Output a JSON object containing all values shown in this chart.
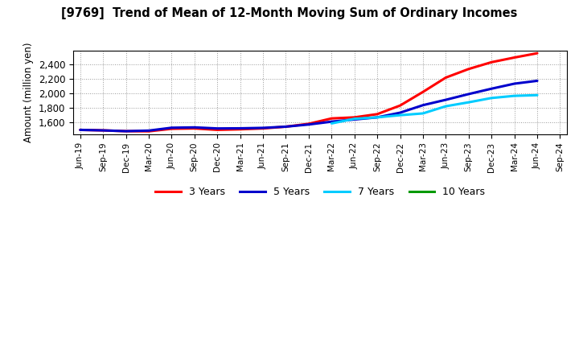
{
  "title": "[9769]  Trend of Mean of 12-Month Moving Sum of Ordinary Incomes",
  "ylabel": "Amount (million yen)",
  "ylim": [
    1430,
    2600
  ],
  "yticks": [
    1600,
    1800,
    2000,
    2200,
    2400
  ],
  "background_color": "#ffffff",
  "grid_color": "#999999",
  "x_labels": [
    "Jun-19",
    "Sep-19",
    "Dec-19",
    "Mar-20",
    "Jun-20",
    "Sep-20",
    "Dec-20",
    "Mar-21",
    "Jun-21",
    "Sep-21",
    "Dec-21",
    "Mar-22",
    "Jun-22",
    "Sep-22",
    "Dec-22",
    "Mar-23",
    "Jun-23",
    "Sep-23",
    "Dec-23",
    "Mar-24",
    "Jun-24",
    "Sep-24"
  ],
  "series": {
    "3 Years": {
      "color": "#ff0000",
      "data_x": [
        0,
        1,
        2,
        3,
        4,
        5,
        6,
        7,
        8,
        9,
        10,
        11,
        12,
        13,
        14,
        15,
        16,
        17,
        18,
        19,
        20
      ],
      "data_y": [
        1490,
        1483,
        1472,
        1470,
        1505,
        1510,
        1490,
        1498,
        1510,
        1535,
        1575,
        1650,
        1665,
        1710,
        1830,
        2020,
        2220,
        2340,
        2435,
        2500,
        2560
      ]
    },
    "5 Years": {
      "color": "#0000cc",
      "data_x": [
        0,
        1,
        2,
        3,
        4,
        5,
        6,
        7,
        8,
        9,
        10,
        11,
        12,
        13,
        14,
        15,
        16,
        17,
        18,
        19,
        20
      ],
      "data_y": [
        1490,
        1483,
        1472,
        1480,
        1520,
        1525,
        1510,
        1512,
        1518,
        1535,
        1565,
        1605,
        1635,
        1665,
        1730,
        1835,
        1910,
        1990,
        2065,
        2135,
        2175
      ]
    },
    "7 Years": {
      "color": "#00ccff",
      "data_x": [
        11,
        12,
        13,
        14,
        15,
        16,
        17,
        18,
        19,
        20
      ],
      "data_y": [
        1580,
        1645,
        1665,
        1695,
        1720,
        1820,
        1875,
        1935,
        1965,
        1975
      ]
    },
    "10 Years": {
      "color": "#009900",
      "data_x": [],
      "data_y": []
    }
  }
}
